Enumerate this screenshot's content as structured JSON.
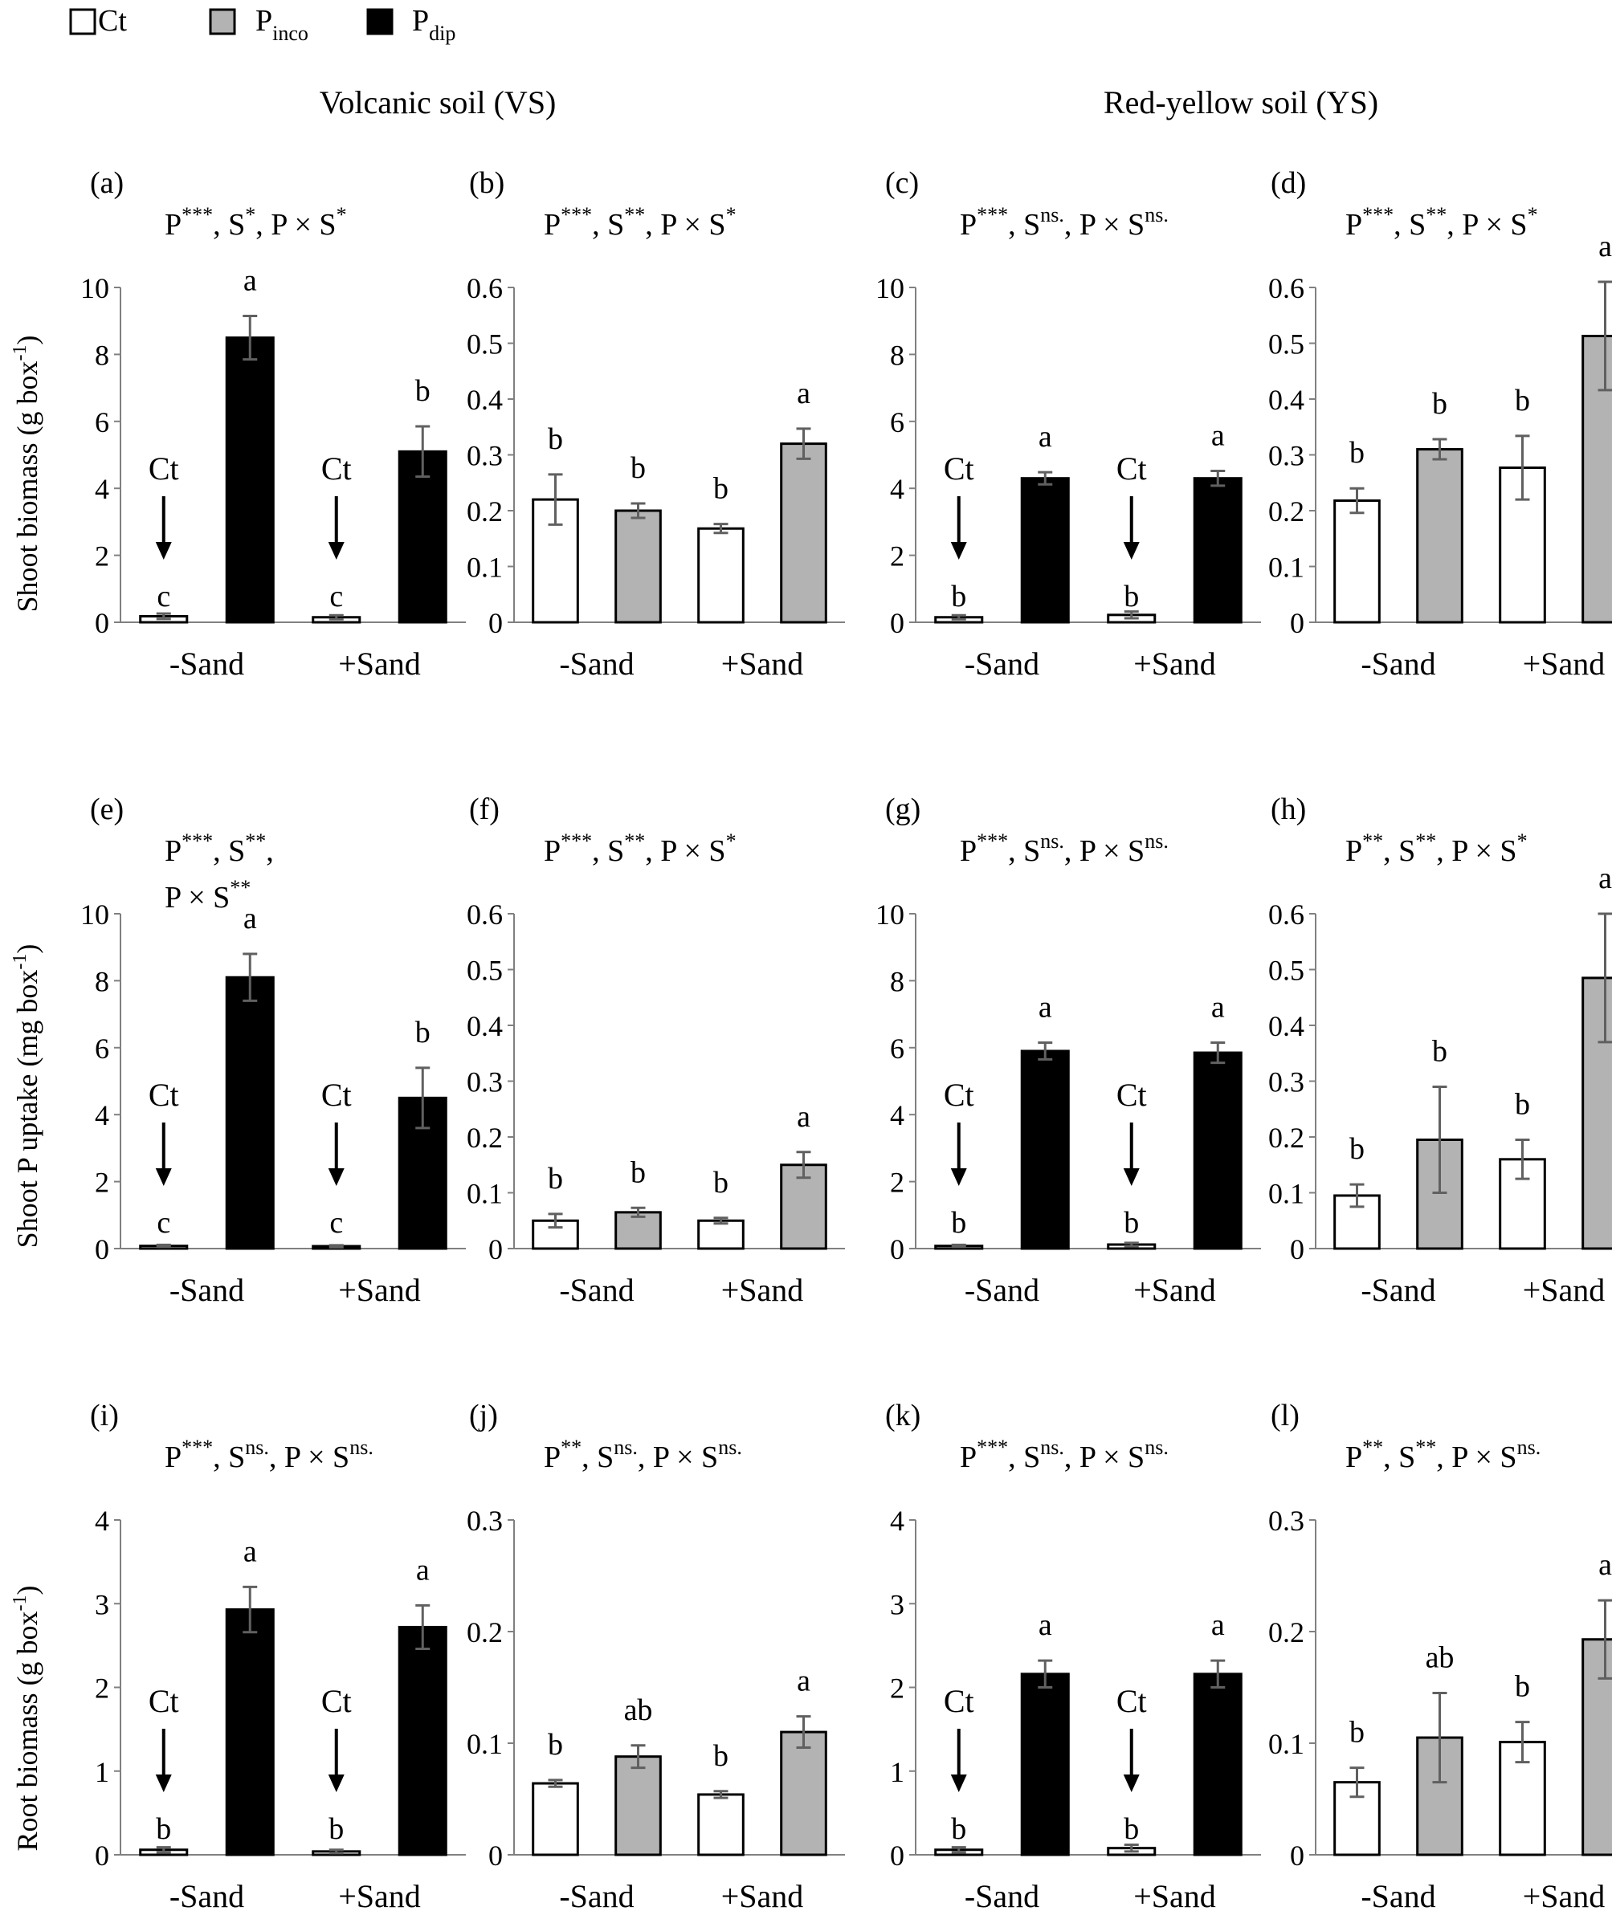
{
  "colors": {
    "Ct": "#ffffff",
    "Pinco": "#b3b3b3",
    "Pdip": "#000000",
    "axis": "#808080",
    "errorbar": "#606060"
  },
  "legend": [
    {
      "key": "Ct",
      "main": "Ct",
      "sub": ""
    },
    {
      "key": "Pinco",
      "main": "P",
      "sub": "inco"
    },
    {
      "key": "Pdip",
      "main": "P",
      "sub": "dip"
    }
  ],
  "headers": {
    "vs": "Volcanic soil (VS)",
    "ys": "Red-yellow soil (YS)"
  },
  "row_labels": {
    "shoot_biomass": {
      "main": "Shoot biomass (g box",
      "sup": "-1",
      "end": ")"
    },
    "shoot_p": {
      "main": "Shoot P uptake (mg box",
      "sup": "-1",
      "end": ")"
    },
    "root_biomass": {
      "main": "Root biomass (g box",
      "sup": "-1",
      "end": ")"
    }
  },
  "categories": [
    "-Sand",
    "+Sand"
  ],
  "ct_annotation": "Ct",
  "chart_data": [
    {
      "id": "a",
      "panel_label": "(a)",
      "type": "bar",
      "ylim": [
        0,
        10
      ],
      "ticks": [
        "0",
        "2",
        "4",
        "6",
        "8",
        "10"
      ],
      "stats": [
        {
          "t": "P",
          "s": "***"
        },
        {
          "t": ", S",
          "s": "*"
        },
        {
          "t": ", P × S",
          "s": "*"
        }
      ],
      "bars": [
        {
          "series": "Ct",
          "value": 0.18,
          "err": 0.08,
          "letter": "c",
          "ct_arrow": true
        },
        {
          "series": "Pdip",
          "value": 8.5,
          "err": 0.65,
          "letter": "a"
        },
        {
          "series": "Ct",
          "value": 0.15,
          "err": 0.06,
          "letter": "c",
          "ct_arrow": true
        },
        {
          "series": "Pdip",
          "value": 5.1,
          "err": 0.75,
          "letter": "b"
        }
      ]
    },
    {
      "id": "b",
      "panel_label": "(b)",
      "type": "bar",
      "ylim": [
        0,
        0.6
      ],
      "ticks": [
        "0",
        "0.1",
        "0.2",
        "0.3",
        "0.4",
        "0.5",
        "0.6"
      ],
      "stats": [
        {
          "t": "P",
          "s": "***"
        },
        {
          "t": ", S",
          "s": "**"
        },
        {
          "t": ", P × S",
          "s": "*"
        }
      ],
      "bars": [
        {
          "series": "Ct",
          "value": 0.22,
          "err": 0.045,
          "letter": "b"
        },
        {
          "series": "Pinco",
          "value": 0.2,
          "err": 0.013,
          "letter": "b"
        },
        {
          "series": "Ct",
          "value": 0.168,
          "err": 0.008,
          "letter": "b"
        },
        {
          "series": "Pinco",
          "value": 0.32,
          "err": 0.027,
          "letter": "a"
        }
      ]
    },
    {
      "id": "c",
      "panel_label": "(c)",
      "type": "bar",
      "ylim": [
        0,
        10
      ],
      "ticks": [
        "0",
        "2",
        "4",
        "6",
        "8",
        "10"
      ],
      "stats": [
        {
          "t": "P",
          "s": "***"
        },
        {
          "t": ", S",
          "s": "ns."
        },
        {
          "t": ", P × S",
          "s": "ns."
        }
      ],
      "bars": [
        {
          "series": "Ct",
          "value": 0.15,
          "err": 0.06,
          "letter": "b",
          "ct_arrow": true
        },
        {
          "series": "Pdip",
          "value": 4.3,
          "err": 0.18,
          "letter": "a"
        },
        {
          "series": "Ct",
          "value": 0.22,
          "err": 0.1,
          "letter": "b",
          "ct_arrow": true
        },
        {
          "series": "Pdip",
          "value": 4.3,
          "err": 0.22,
          "letter": "a"
        }
      ]
    },
    {
      "id": "d",
      "panel_label": "(d)",
      "type": "bar",
      "ylim": [
        0,
        0.6
      ],
      "ticks": [
        "0",
        "0.1",
        "0.2",
        "0.3",
        "0.4",
        "0.5",
        "0.6"
      ],
      "stats": [
        {
          "t": "P",
          "s": "***"
        },
        {
          "t": ", S",
          "s": "**"
        },
        {
          "t": ", P × S",
          "s": "*"
        }
      ],
      "bars": [
        {
          "series": "Ct",
          "value": 0.218,
          "err": 0.022,
          "letter": "b"
        },
        {
          "series": "Pinco",
          "value": 0.31,
          "err": 0.018,
          "letter": "b"
        },
        {
          "series": "Ct",
          "value": 0.277,
          "err": 0.057,
          "letter": "b"
        },
        {
          "series": "Pinco",
          "value": 0.513,
          "err": 0.097,
          "letter": "a"
        }
      ]
    },
    {
      "id": "e",
      "panel_label": "(e)",
      "type": "bar",
      "ylim": [
        0,
        10
      ],
      "ticks": [
        "0",
        "2",
        "4",
        "6",
        "8",
        "10"
      ],
      "stats": [
        {
          "t": "P",
          "s": "***"
        },
        {
          "t": ", S",
          "s": "**"
        },
        {
          "t": ",",
          "s": ""
        }
      ],
      "stats2": [
        {
          "t": "P × S",
          "s": "**"
        }
      ],
      "bars": [
        {
          "series": "Ct",
          "value": 0.08,
          "err": 0.03,
          "letter": "c",
          "ct_arrow": true
        },
        {
          "series": "Pdip",
          "value": 8.1,
          "err": 0.7,
          "letter": "a"
        },
        {
          "series": "Ct",
          "value": 0.07,
          "err": 0.03,
          "letter": "c",
          "ct_arrow": true
        },
        {
          "series": "Pdip",
          "value": 4.5,
          "err": 0.9,
          "letter": "b"
        }
      ]
    },
    {
      "id": "f",
      "panel_label": "(f)",
      "type": "bar",
      "ylim": [
        0,
        0.6
      ],
      "ticks": [
        "0",
        "0.1",
        "0.2",
        "0.3",
        "0.4",
        "0.5",
        "0.6"
      ],
      "stats": [
        {
          "t": "P",
          "s": "***"
        },
        {
          "t": ", S",
          "s": "**"
        },
        {
          "t": ", P × S",
          "s": "*"
        }
      ],
      "bars": [
        {
          "series": "Ct",
          "value": 0.05,
          "err": 0.012,
          "letter": "b"
        },
        {
          "series": "Pinco",
          "value": 0.065,
          "err": 0.008,
          "letter": "b"
        },
        {
          "series": "Ct",
          "value": 0.05,
          "err": 0.005,
          "letter": "b"
        },
        {
          "series": "Pinco",
          "value": 0.15,
          "err": 0.023,
          "letter": "a"
        }
      ]
    },
    {
      "id": "g",
      "panel_label": "(g)",
      "type": "bar",
      "ylim": [
        0,
        10
      ],
      "ticks": [
        "0",
        "2",
        "4",
        "6",
        "8",
        "10"
      ],
      "stats": [
        {
          "t": "P",
          "s": "***"
        },
        {
          "t": ", S",
          "s": "ns."
        },
        {
          "t": ", P × S",
          "s": "ns."
        }
      ],
      "bars": [
        {
          "series": "Ct",
          "value": 0.08,
          "err": 0.03,
          "letter": "b",
          "ct_arrow": true
        },
        {
          "series": "Pdip",
          "value": 5.9,
          "err": 0.25,
          "letter": "a"
        },
        {
          "series": "Ct",
          "value": 0.12,
          "err": 0.05,
          "letter": "b",
          "ct_arrow": true
        },
        {
          "series": "Pdip",
          "value": 5.85,
          "err": 0.3,
          "letter": "a"
        }
      ]
    },
    {
      "id": "h",
      "panel_label": "(h)",
      "type": "bar",
      "ylim": [
        0,
        0.6
      ],
      "ticks": [
        "0",
        "0.1",
        "0.2",
        "0.3",
        "0.4",
        "0.5",
        "0.6"
      ],
      "stats": [
        {
          "t": "P",
          "s": "**"
        },
        {
          "t": ", S",
          "s": "**"
        },
        {
          "t": ", P × S",
          "s": "*"
        }
      ],
      "bars": [
        {
          "series": "Ct",
          "value": 0.095,
          "err": 0.02,
          "letter": "b"
        },
        {
          "series": "Pinco",
          "value": 0.195,
          "err": 0.095,
          "letter": "b"
        },
        {
          "series": "Ct",
          "value": 0.16,
          "err": 0.035,
          "letter": "b"
        },
        {
          "series": "Pinco",
          "value": 0.485,
          "err": 0.115,
          "letter": "a"
        }
      ]
    },
    {
      "id": "i",
      "panel_label": "(i)",
      "type": "bar",
      "ylim": [
        0,
        4
      ],
      "ticks": [
        "0",
        "1",
        "2",
        "3",
        "4"
      ],
      "stats": [
        {
          "t": "P",
          "s": "***"
        },
        {
          "t": ", S",
          "s": "ns."
        },
        {
          "t": ", P × S",
          "s": "ns."
        }
      ],
      "bars": [
        {
          "series": "Ct",
          "value": 0.06,
          "err": 0.03,
          "letter": "b",
          "ct_arrow": true
        },
        {
          "series": "Pdip",
          "value": 2.93,
          "err": 0.27,
          "letter": "a"
        },
        {
          "series": "Ct",
          "value": 0.04,
          "err": 0.02,
          "letter": "b",
          "ct_arrow": true
        },
        {
          "series": "Pdip",
          "value": 2.72,
          "err": 0.26,
          "letter": "a"
        }
      ]
    },
    {
      "id": "j",
      "panel_label": "(j)",
      "type": "bar",
      "ylim": [
        0,
        0.3
      ],
      "ticks": [
        "0",
        "0.1",
        "0.2",
        "0.3"
      ],
      "stats": [
        {
          "t": "P",
          "s": "**"
        },
        {
          "t": ", S",
          "s": "ns."
        },
        {
          "t": ", P × S",
          "s": "ns."
        }
      ],
      "bars": [
        {
          "series": "Ct",
          "value": 0.064,
          "err": 0.003,
          "letter": "b"
        },
        {
          "series": "Pinco",
          "value": 0.088,
          "err": 0.01,
          "letter": "ab"
        },
        {
          "series": "Ct",
          "value": 0.054,
          "err": 0.003,
          "letter": "b"
        },
        {
          "series": "Pinco",
          "value": 0.11,
          "err": 0.014,
          "letter": "a"
        }
      ]
    },
    {
      "id": "k",
      "panel_label": "(k)",
      "type": "bar",
      "ylim": [
        0,
        4
      ],
      "ticks": [
        "0",
        "1",
        "2",
        "3",
        "4"
      ],
      "stats": [
        {
          "t": "P",
          "s": "***"
        },
        {
          "t": ", S",
          "s": "ns."
        },
        {
          "t": ", P × S",
          "s": "ns."
        }
      ],
      "bars": [
        {
          "series": "Ct",
          "value": 0.06,
          "err": 0.03,
          "letter": "b",
          "ct_arrow": true
        },
        {
          "series": "Pdip",
          "value": 2.16,
          "err": 0.16,
          "letter": "a"
        },
        {
          "series": "Ct",
          "value": 0.08,
          "err": 0.04,
          "letter": "b",
          "ct_arrow": true
        },
        {
          "series": "Pdip",
          "value": 2.16,
          "err": 0.16,
          "letter": "a"
        }
      ]
    },
    {
      "id": "l",
      "panel_label": "(l)",
      "type": "bar",
      "ylim": [
        0,
        0.3
      ],
      "ticks": [
        "0",
        "0.1",
        "0.2",
        "0.3"
      ],
      "stats": [
        {
          "t": "P",
          "s": "**"
        },
        {
          "t": ", S",
          "s": "**"
        },
        {
          "t": ", P × S",
          "s": "ns."
        }
      ],
      "bars": [
        {
          "series": "Ct",
          "value": 0.065,
          "err": 0.013,
          "letter": "b"
        },
        {
          "series": "Pinco",
          "value": 0.105,
          "err": 0.04,
          "letter": "ab"
        },
        {
          "series": "Ct",
          "value": 0.101,
          "err": 0.018,
          "letter": "b"
        },
        {
          "series": "Pinco",
          "value": 0.193,
          "err": 0.035,
          "letter": "a"
        }
      ]
    }
  ]
}
